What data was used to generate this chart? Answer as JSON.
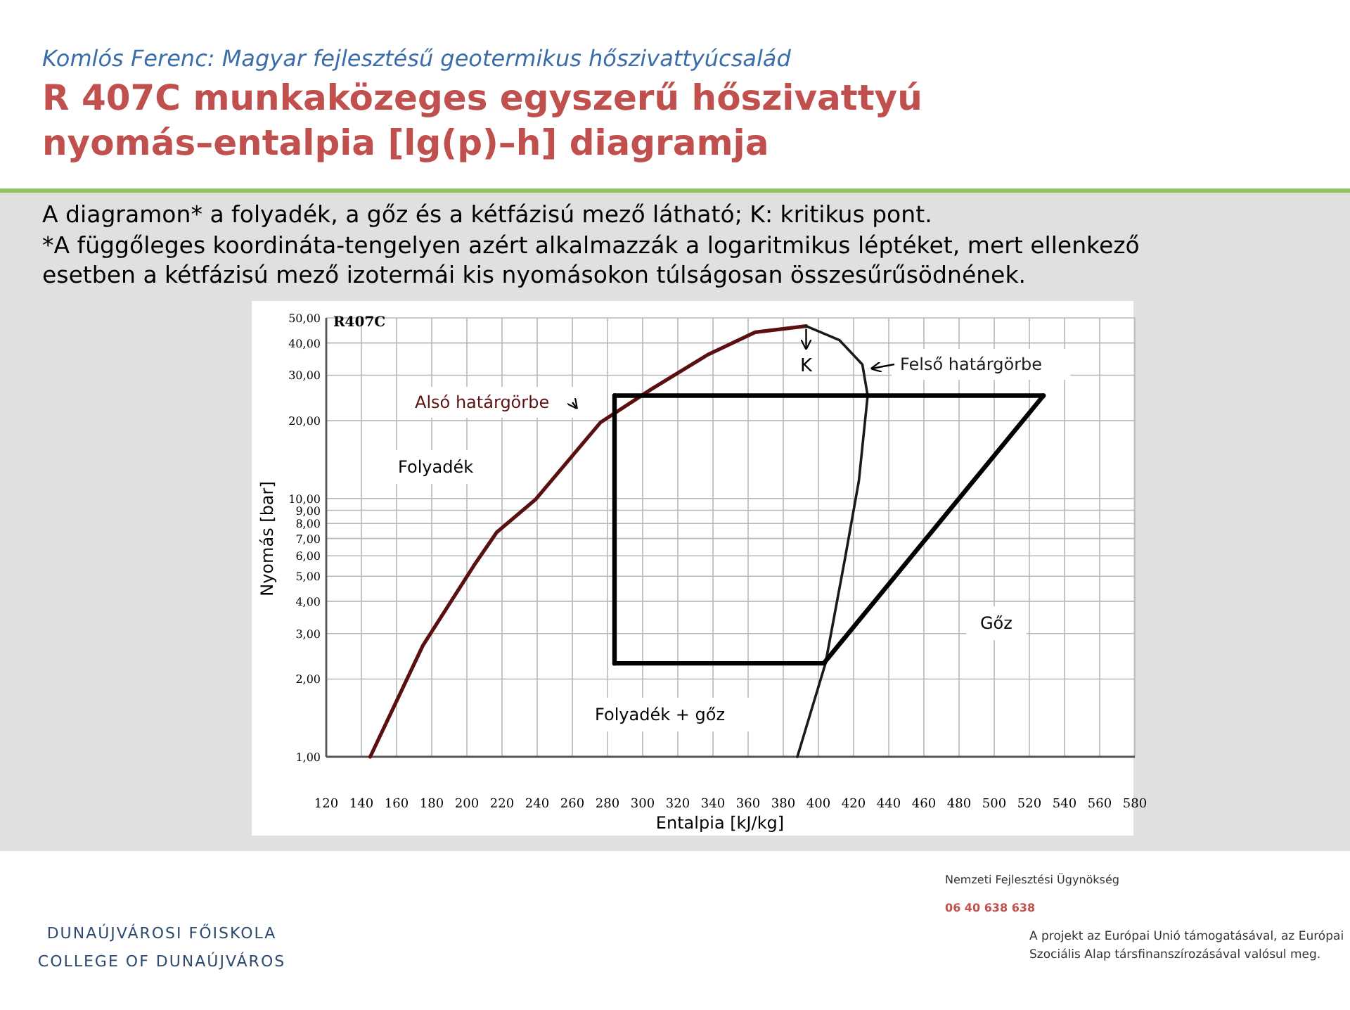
{
  "chart_data": {
    "type": "line",
    "title": "R 407C munkaközeges egyszerű hőszivattyú nyomás–entalpia [lg(p)–h] diagramja",
    "subtitle": "Komlós Ferenc: Magyar fejlesztésű geotermikus hőszivattyúcsalád",
    "xlabel": "Entalpia [kJ/kg]",
    "ylabel": "Nyomás [bar]",
    "annotations": [
      "A diagramon* a folyadék, a gőz és a kétfázisú mező látható; K: kritikus pont.",
      "*A függőleges koordináta-tengelyen azért alkalmazzák a logaritmikus léptéket, mert ellenkező esetben a kétfázisú mező izotermái kis nyomásokon túlságosan összesűrűsödnének.",
      "R407C",
      "Folyadék",
      "Folyadék + gőz",
      "Gőz",
      {
        "text": "K",
        "x": 393,
        "y": 46.5
      },
      "DUNAÚJVÁROSI FŐISKOLA",
      "COLLEGE OF DUNAÚJVÁROS",
      "Nemzeti Fejlesztési Ügynökség",
      "06 40 638 638",
      "A projekt az Európai Unió támogatásával, az Európai Szociális Alap társfinanszírozásával valósul meg."
    ],
    "xlim": [
      120,
      580
    ],
    "xticks": [
      120,
      140,
      160,
      180,
      200,
      220,
      240,
      260,
      280,
      300,
      320,
      340,
      360,
      380,
      400,
      420,
      440,
      460,
      480,
      500,
      520,
      540,
      560,
      580
    ],
    "ylim": [
      1,
      50
    ],
    "yticks": [
      {
        "value": 1,
        "label": "1,00"
      },
      {
        "value": 2,
        "label": "2,00"
      },
      {
        "value": 3,
        "label": "3,00"
      },
      {
        "value": 4,
        "label": "4,00"
      },
      {
        "value": 5,
        "label": "5,00"
      },
      {
        "value": 6,
        "label": "6,00"
      },
      {
        "value": 7,
        "label": "7,00"
      },
      {
        "value": 8,
        "label": "8,00"
      },
      {
        "value": 9,
        "label": "9,00"
      },
      {
        "value": 10,
        "label": "10,00"
      },
      {
        "value": 20,
        "label": "20,00"
      },
      {
        "value": 30,
        "label": "30,00"
      },
      {
        "value": 40,
        "label": "40,00"
      },
      {
        "value": 50,
        "label": "50,00"
      }
    ],
    "log": "y",
    "grid": true,
    "marker": "none",
    "line_style": "solid",
    "series": [
      {
        "name": "Alsó határgörbe",
        "color": "#5a1010",
        "x": [
          145,
          175,
          204,
          217,
          239,
          276,
          305,
          337,
          364,
          393
        ],
        "values": [
          1.0,
          2.7,
          5.5,
          7.4,
          9.9,
          19.7,
          26.5,
          36,
          44,
          46.5
        ]
      },
      {
        "name": "Felső határgörbe",
        "color": "#1a1a1a",
        "x": [
          393,
          412,
          425,
          428,
          423,
          415,
          404,
          388
        ],
        "values": [
          46.5,
          41,
          33,
          25,
          11.7,
          5.8,
          2.3,
          1.0
        ]
      },
      {
        "color": "#000000",
        "x": [
          284,
          403,
          528
        ],
        "values": [
          2.3,
          2.3,
          25
        ]
      },
      {
        "color": "#000000",
        "x": [
          284,
          528
        ],
        "values": [
          25,
          25
        ]
      },
      {
        "color": "#000000",
        "x": [
          284,
          284
        ],
        "values": [
          25,
          2.3
        ]
      }
    ]
  }
}
